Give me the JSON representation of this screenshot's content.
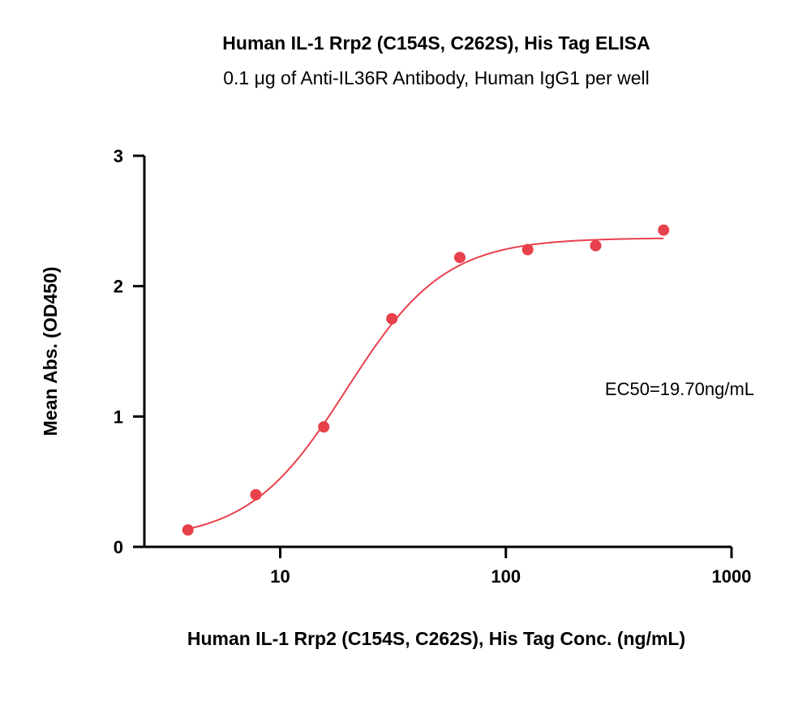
{
  "chart_data": {
    "type": "scatter",
    "title": "Human IL-1 Rrp2 (C154S, C262S), His Tag ELISA",
    "subtitle": "0.1 μg of Anti-IL36R Antibody, Human IgG1 per well",
    "xlabel": "Human IL-1 Rrp2 (C154S, C262S), His Tag Conc. (ng/mL)",
    "ylabel": "Mean Abs. (OD450)",
    "x_scale": "log",
    "xlim": [
      2.5,
      1000
    ],
    "ylim": [
      0,
      3
    ],
    "x_ticks": [
      "10",
      "100",
      "1000"
    ],
    "y_ticks": [
      "0",
      "1",
      "2",
      "3"
    ],
    "annotation": "EC50=19.70ng/mL",
    "grid": false,
    "color": "#e8414b",
    "series": [
      {
        "x": [
          3.9,
          7.8,
          15.6,
          31.25,
          62.5,
          125,
          250,
          500
        ],
        "y": [
          0.13,
          0.4,
          0.92,
          1.75,
          2.22,
          2.28,
          2.31,
          2.43
        ]
      }
    ],
    "fit": {
      "model": "4PL",
      "bottom": 0.05,
      "top": 2.37,
      "ec50": 19.7,
      "hill": 2.0
    }
  }
}
